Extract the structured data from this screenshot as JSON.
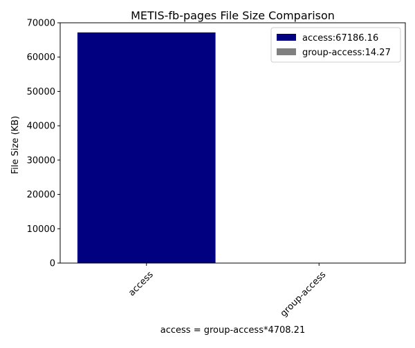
{
  "chart_data": {
    "type": "bar",
    "title": "METIS-fb-pages File Size Comparison",
    "xlabel": "access =  group-access*4708.21",
    "ylabel": "File Size (KB)",
    "categories": [
      "access",
      "group-access"
    ],
    "values": [
      67186.16,
      14.27
    ],
    "colors": [
      "#000080",
      "#808080"
    ],
    "ylim": [
      0,
      70000
    ],
    "yticks": [
      0,
      10000,
      20000,
      30000,
      40000,
      50000,
      60000,
      70000
    ],
    "legend": {
      "placement": "top-right",
      "entries": [
        "access:67186.16",
        "group-access:14.27"
      ]
    },
    "grid": false
  }
}
